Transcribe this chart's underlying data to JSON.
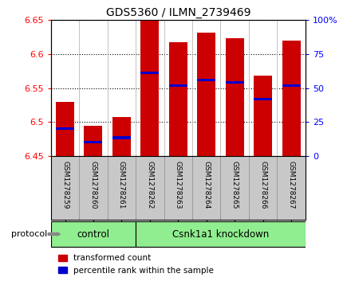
{
  "title": "GDS5360 / ILMN_2739469",
  "samples": [
    "GSM1278259",
    "GSM1278260",
    "GSM1278261",
    "GSM1278262",
    "GSM1278263",
    "GSM1278264",
    "GSM1278265",
    "GSM1278266",
    "GSM1278267"
  ],
  "bar_tops": [
    6.53,
    6.494,
    6.508,
    6.649,
    6.618,
    6.632,
    6.624,
    6.568,
    6.62
  ],
  "bar_bottom": 6.45,
  "percentile_values": [
    6.49,
    6.471,
    6.477,
    6.573,
    6.554,
    6.562,
    6.558,
    6.534,
    6.554
  ],
  "ylim_left": [
    6.45,
    6.65
  ],
  "ylim_right": [
    0,
    100
  ],
  "yticks_left": [
    6.45,
    6.5,
    6.55,
    6.6,
    6.65
  ],
  "yticks_right": [
    0,
    25,
    50,
    75,
    100
  ],
  "bar_color": "#CC0000",
  "percentile_color": "#0000CC",
  "n_control": 3,
  "protocol_label": "protocol",
  "control_label": "control",
  "knockdown_label": "Csnk1a1 knockdown",
  "legend_red": "transformed count",
  "legend_blue": "percentile rank within the sample",
  "group_color": "#90EE90",
  "tick_area_color": "#C8C8C8",
  "background_color": "#FFFFFF",
  "bar_width": 0.65
}
